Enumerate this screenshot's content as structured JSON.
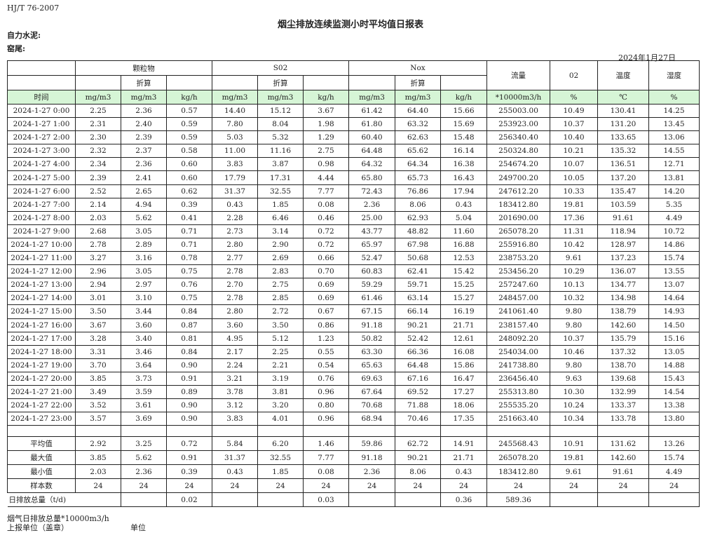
{
  "doc": {
    "standard": "HJ/T  76-2007",
    "title": "烟尘排放连续监测小时平均值日报表",
    "company": "自力水泥:",
    "location": "窑尾:",
    "date": "2024年1月27日"
  },
  "header": {
    "groups": [
      "颗粒物",
      "S02",
      "Nox"
    ],
    "flow": "流量",
    "o2": "02",
    "temp": "温度",
    "humidity": "湿度",
    "converted": "折算",
    "units": [
      "时间",
      "mg/m3",
      "mg/m3",
      "kg/h",
      "mg/m3",
      "mg/m3",
      "kg/h",
      "mg/m3",
      "mg/m3",
      "kg/h",
      "*10000m3/h",
      "%",
      "℃",
      "%"
    ]
  },
  "rows": [
    [
      "2024-1-27  0:00",
      "2.25",
      "2.36",
      "0.57",
      "14.40",
      "15.12",
      "3.67",
      "61.42",
      "64.40",
      "15.66",
      "255003.00",
      "10.49",
      "130.41",
      "14.25"
    ],
    [
      "2024-1-27  1:00",
      "2.31",
      "2.40",
      "0.59",
      "7.80",
      "8.04",
      "1.98",
      "61.80",
      "63.32",
      "15.69",
      "253923.00",
      "10.37",
      "131.20",
      "13.45"
    ],
    [
      "2024-1-27  2:00",
      "2.30",
      "2.39",
      "0.59",
      "5.03",
      "5.32",
      "1.29",
      "60.40",
      "62.63",
      "15.48",
      "256340.40",
      "10.40",
      "133.65",
      "13.06"
    ],
    [
      "2024-1-27  3:00",
      "2.32",
      "2.37",
      "0.58",
      "11.00",
      "11.16",
      "2.75",
      "64.48",
      "65.62",
      "16.14",
      "250324.80",
      "10.21",
      "135.32",
      "14.55"
    ],
    [
      "2024-1-27  4:00",
      "2.34",
      "2.36",
      "0.60",
      "3.83",
      "3.87",
      "0.98",
      "64.32",
      "64.34",
      "16.38",
      "254674.20",
      "10.07",
      "136.51",
      "12.71"
    ],
    [
      "2024-1-27  5:00",
      "2.39",
      "2.41",
      "0.60",
      "17.79",
      "17.31",
      "4.44",
      "65.80",
      "65.73",
      "16.43",
      "249700.20",
      "10.05",
      "137.20",
      "13.81"
    ],
    [
      "2024-1-27  6:00",
      "2.52",
      "2.65",
      "0.62",
      "31.37",
      "32.55",
      "7.77",
      "72.43",
      "76.86",
      "17.94",
      "247612.20",
      "10.33",
      "135.47",
      "14.20"
    ],
    [
      "2024-1-27  7:00",
      "2.14",
      "4.94",
      "0.39",
      "0.43",
      "1.85",
      "0.08",
      "2.36",
      "8.06",
      "0.43",
      "183412.80",
      "19.81",
      "103.59",
      "5.35"
    ],
    [
      "2024-1-27  8:00",
      "2.03",
      "5.62",
      "0.41",
      "2.28",
      "6.46",
      "0.46",
      "25.00",
      "62.93",
      "5.04",
      "201690.00",
      "17.36",
      "91.61",
      "4.49"
    ],
    [
      "2024-1-27  9:00",
      "2.68",
      "3.05",
      "0.71",
      "2.73",
      "3.14",
      "0.72",
      "43.77",
      "48.82",
      "11.60",
      "265078.20",
      "11.31",
      "118.94",
      "10.72"
    ],
    [
      "2024-1-27 10:00",
      "2.78",
      "2.89",
      "0.71",
      "2.80",
      "2.90",
      "0.72",
      "65.97",
      "67.98",
      "16.88",
      "255916.80",
      "10.42",
      "128.97",
      "14.86"
    ],
    [
      "2024-1-27 11:00",
      "3.27",
      "3.16",
      "0.78",
      "2.77",
      "2.69",
      "0.66",
      "52.47",
      "50.68",
      "12.53",
      "238753.20",
      "9.61",
      "137.23",
      "15.74"
    ],
    [
      "2024-1-27 12:00",
      "2.96",
      "3.05",
      "0.75",
      "2.78",
      "2.83",
      "0.70",
      "60.83",
      "62.41",
      "15.42",
      "253456.20",
      "10.29",
      "136.07",
      "13.55"
    ],
    [
      "2024-1-27 13:00",
      "2.94",
      "2.97",
      "0.76",
      "2.70",
      "2.75",
      "0.69",
      "59.29",
      "59.71",
      "15.25",
      "257247.60",
      "10.13",
      "134.77",
      "13.07"
    ],
    [
      "2024-1-27 14:00",
      "3.01",
      "3.10",
      "0.75",
      "2.78",
      "2.85",
      "0.69",
      "61.46",
      "63.14",
      "15.27",
      "248457.00",
      "10.32",
      "134.98",
      "14.64"
    ],
    [
      "2024-1-27 15:00",
      "3.50",
      "3.44",
      "0.84",
      "2.80",
      "2.72",
      "0.67",
      "67.15",
      "66.14",
      "16.19",
      "241061.40",
      "9.80",
      "138.79",
      "14.93"
    ],
    [
      "2024-1-27 16:00",
      "3.67",
      "3.60",
      "0.87",
      "3.60",
      "3.50",
      "0.86",
      "91.18",
      "90.21",
      "21.71",
      "238157.40",
      "9.80",
      "142.60",
      "14.50"
    ],
    [
      "2024-1-27 17:00",
      "3.28",
      "3.40",
      "0.81",
      "4.95",
      "5.12",
      "1.23",
      "50.82",
      "52.42",
      "12.61",
      "248092.20",
      "10.37",
      "135.79",
      "15.16"
    ],
    [
      "2024-1-27 18:00",
      "3.31",
      "3.46",
      "0.84",
      "2.17",
      "2.25",
      "0.55",
      "63.30",
      "66.36",
      "16.08",
      "254034.00",
      "10.46",
      "137.32",
      "13.05"
    ],
    [
      "2024-1-27 19:00",
      "3.70",
      "3.64",
      "0.90",
      "2.24",
      "2.21",
      "0.54",
      "65.63",
      "64.48",
      "15.86",
      "241738.80",
      "9.80",
      "138.70",
      "14.88"
    ],
    [
      "2024-1-27 20:00",
      "3.85",
      "3.73",
      "0.91",
      "3.21",
      "3.19",
      "0.76",
      "69.63",
      "67.16",
      "16.47",
      "236456.40",
      "9.63",
      "139.68",
      "15.43"
    ],
    [
      "2024-1-27 21:00",
      "3.49",
      "3.59",
      "0.89",
      "3.78",
      "3.81",
      "0.96",
      "67.64",
      "69.52",
      "17.27",
      "255313.80",
      "10.30",
      "132.99",
      "14.54"
    ],
    [
      "2024-1-27 22:00",
      "3.52",
      "3.61",
      "0.90",
      "3.12",
      "3.20",
      "0.80",
      "70.68",
      "71.88",
      "18.06",
      "255535.20",
      "10.24",
      "133.37",
      "13.38"
    ],
    [
      "2024-1-27 23:00",
      "3.57",
      "3.69",
      "0.90",
      "3.83",
      "4.01",
      "0.96",
      "68.94",
      "70.46",
      "17.35",
      "251663.40",
      "10.34",
      "133.78",
      "13.80"
    ]
  ],
  "summary": [
    [
      "平均值",
      "2.92",
      "3.25",
      "0.72",
      "5.84",
      "6.20",
      "1.46",
      "59.86",
      "62.72",
      "14.91",
      "245568.43",
      "10.91",
      "131.62",
      "13.26"
    ],
    [
      "最大值",
      "3.85",
      "5.62",
      "0.91",
      "31.37",
      "32.55",
      "7.77",
      "91.18",
      "90.21",
      "21.71",
      "265078.20",
      "19.81",
      "142.60",
      "15.74"
    ],
    [
      "最小值",
      "2.03",
      "2.36",
      "0.39",
      "0.43",
      "1.85",
      "0.08",
      "2.36",
      "8.06",
      "0.43",
      "183412.80",
      "9.61",
      "91.61",
      "4.49"
    ],
    [
      "样本数",
      "24",
      "24",
      "24",
      "24",
      "24",
      "24",
      "24",
      "24",
      "24",
      "24",
      "24",
      "24",
      "24"
    ]
  ],
  "total": [
    "日排放总量（t/d)",
    "",
    "0.02",
    "",
    "",
    "0.03",
    "",
    "",
    "0.36",
    "589.36",
    "",
    "",
    ""
  ],
  "notes": {
    "flue_total": "烟气日排放总量*10000m3/h",
    "reporter": "上报单位（盖章）",
    "unit": "单位"
  }
}
